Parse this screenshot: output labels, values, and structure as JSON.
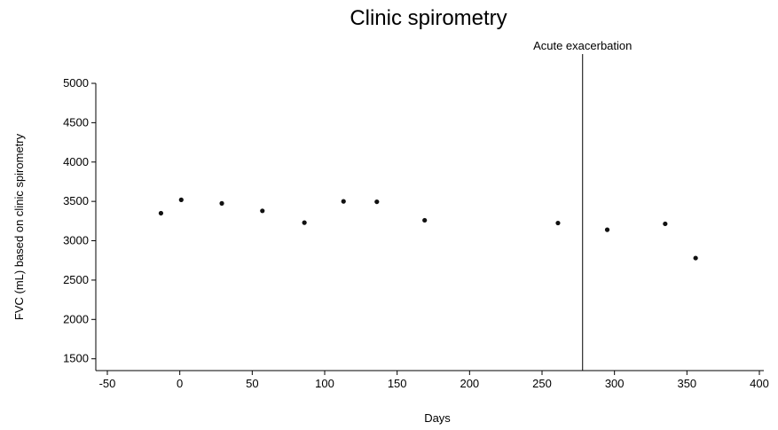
{
  "chart_data": {
    "type": "scatter",
    "title": "Clinic spirometry",
    "xlabel": "Days",
    "ylabel": "FVC (mL) based on clinic spirometry",
    "xlim": [
      -50,
      400
    ],
    "ylim": [
      1350,
      5000
    ],
    "x_ticks": [
      -50,
      0,
      50,
      100,
      150,
      200,
      250,
      300,
      350,
      400
    ],
    "y_ticks": [
      1500,
      2000,
      2500,
      3000,
      3500,
      4000,
      4500,
      5000
    ],
    "grid": false,
    "series": [
      {
        "points": [
          {
            "x": -13,
            "y": 3350
          },
          {
            "x": 1,
            "y": 3520
          },
          {
            "x": 29,
            "y": 3475
          },
          {
            "x": 57,
            "y": 3380
          },
          {
            "x": 86,
            "y": 3230
          },
          {
            "x": 113,
            "y": 3500
          },
          {
            "x": 136,
            "y": 3495
          },
          {
            "x": 169,
            "y": 3260
          },
          {
            "x": 261,
            "y": 3225
          },
          {
            "x": 295,
            "y": 3140
          },
          {
            "x": 335,
            "y": 3215
          },
          {
            "x": 356,
            "y": 2780
          }
        ]
      }
    ],
    "annotations": [
      {
        "type": "vertical-line",
        "x": 278,
        "label": "Acute exacerbation"
      }
    ]
  }
}
